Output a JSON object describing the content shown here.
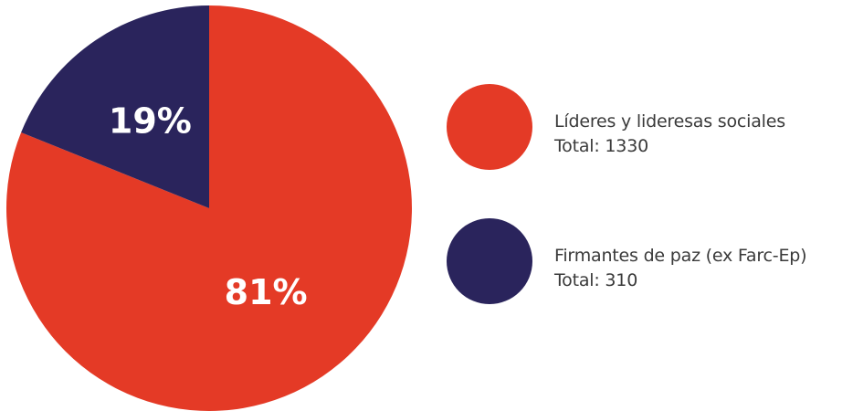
{
  "chart_data": {
    "type": "pie",
    "slices": [
      {
        "name": "Líderes y lideresas sociales",
        "total_label": "Total: 1330",
        "value": 1330,
        "percent_label": "81%",
        "color": "#e43a26"
      },
      {
        "name": "Firmantes de paz (ex Farc-Ep)",
        "total_label": "Total: 310",
        "value": 310,
        "percent_label": "19%",
        "color": "#2a245c"
      }
    ]
  }
}
